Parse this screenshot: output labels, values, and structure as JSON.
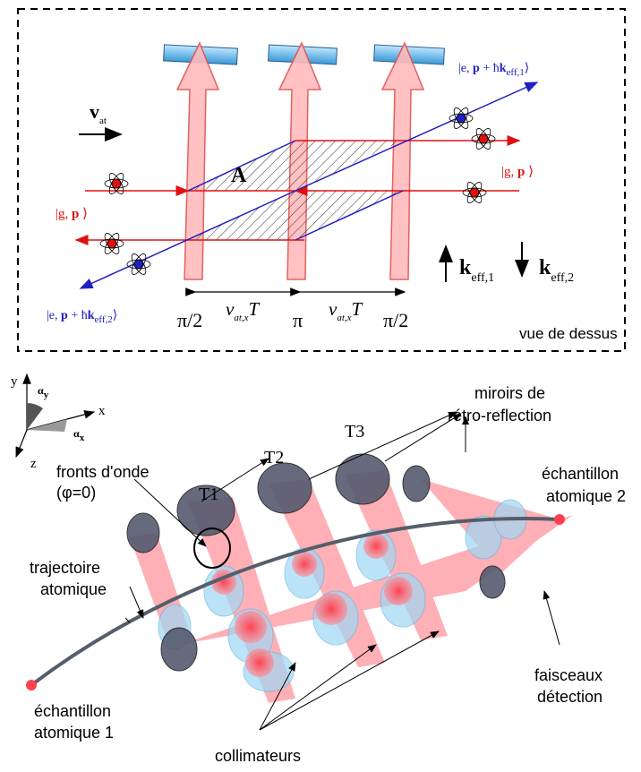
{
  "top": {
    "velocity": {
      "symbol": "v",
      "sub": "at"
    },
    "state_e1": {
      "open": "|e, ",
      "p": "p",
      "plus": " + ħ",
      "k": "k",
      "sub": "eff,1",
      "close": "⟩"
    },
    "state_g_right": {
      "open": "|g, ",
      "p": "p",
      "close": " ⟩"
    },
    "area": "A",
    "state_g_left": {
      "open": "|g, ",
      "p": "p",
      "close": " ⟩"
    },
    "state_e2": {
      "open": "|e, ",
      "p": "p",
      "plus": " + ħ",
      "k": "k",
      "sub": "eff,2",
      "close": "⟩"
    },
    "k1": {
      "k": "k",
      "sub": "eff,1"
    },
    "k2": {
      "k": "k",
      "sub": "eff,2"
    },
    "pulses": [
      "π/2",
      "π",
      "π/2"
    ],
    "durations": [
      {
        "v": "v",
        "sub": "at,x",
        "T": "T"
      },
      {
        "v": "v",
        "sub": "at,x",
        "T": "T"
      }
    ],
    "view": "vue de dessus"
  },
  "bottom": {
    "axes": {
      "y": "y",
      "alpha_y": {
        "symbol": "α",
        "sub": "y"
      },
      "x": "x",
      "alpha_x": {
        "symbol": "α",
        "sub": "x"
      },
      "z": "z"
    },
    "wavefronts": [
      "fronts d'onde",
      "(φ=0)"
    ],
    "times": [
      "T1",
      "T2",
      "T3"
    ],
    "mirrors": [
      "miroirs de",
      "rétro-reflection"
    ],
    "sample2": [
      "échantillon",
      "atomique 2"
    ],
    "trajectory": [
      "trajectoire",
      "atomique"
    ],
    "beams": [
      "faisceaux",
      "détection"
    ],
    "sample1": [
      "échantillon",
      "atomique 1"
    ],
    "collimators": "collimateurs"
  }
}
